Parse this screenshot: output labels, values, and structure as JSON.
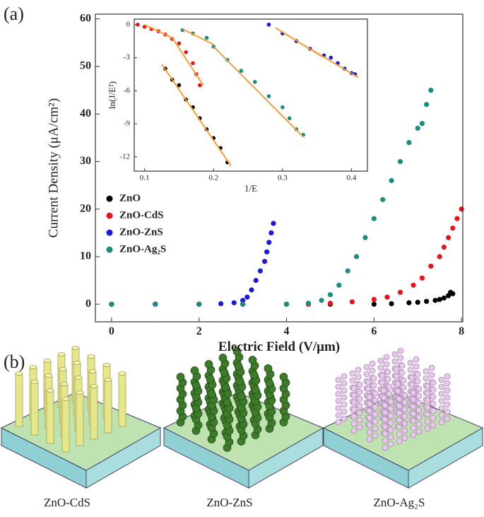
{
  "figure": {
    "panel_a": "(a)",
    "panel_b": "(b)",
    "illustrations": [
      "ZnO-CdS",
      "ZnO-ZnS",
      "ZnO-Ag₂S"
    ]
  },
  "chart_data": [
    {
      "type": "scatter",
      "x_label": "Electric Field (V/μm)",
      "y_label": "Current Density (μA/cm²)",
      "xlim": [
        -0.37,
        8.03
      ],
      "ylim": [
        -3.7,
        61
      ],
      "xticks": [
        0,
        2,
        4,
        6,
        8
      ],
      "yticks": [
        0,
        10,
        20,
        30,
        40,
        50,
        60
      ],
      "legend": "center-left",
      "series": [
        {
          "name": "ZnO",
          "color": "#000000",
          "x": [
            0,
            1,
            2,
            3,
            4,
            5,
            6,
            6.4,
            6.8,
            7.0,
            7.2,
            7.4,
            7.5,
            7.6,
            7.7,
            7.75,
            7.8
          ],
          "y": [
            0,
            0,
            0,
            0,
            0,
            0,
            0,
            0.1,
            0.3,
            0.4,
            0.6,
            0.8,
            1.0,
            1.3,
            1.8,
            2.5,
            2.2
          ]
        },
        {
          "name": "ZnO-CdS",
          "color": "#e8141a",
          "x": [
            0,
            1,
            2,
            3,
            4,
            4.5,
            5,
            5.5,
            6,
            6.3,
            6.6,
            6.9,
            7.1,
            7.3,
            7.5,
            7.6,
            7.7,
            7.8,
            7.9,
            8.0
          ],
          "y": [
            0,
            0,
            0,
            0,
            0,
            0,
            0.2,
            0.5,
            1,
            1.5,
            2.5,
            4,
            5.5,
            8,
            10,
            12,
            14,
            16,
            18,
            20
          ]
        },
        {
          "name": "ZnO-ZnS",
          "color": "#1a1adc",
          "x": [
            0,
            1,
            2,
            2.5,
            2.8,
            3.0,
            3.1,
            3.2,
            3.3,
            3.4,
            3.5,
            3.55,
            3.6,
            3.65,
            3.7
          ],
          "y": [
            0,
            0,
            0,
            0.1,
            0.3,
            0.8,
            1.5,
            3,
            5,
            7,
            9,
            11,
            13,
            15,
            17
          ]
        },
        {
          "name": "ZnO-Ag₂S",
          "color": "#1a8c80",
          "x": [
            0,
            1,
            2,
            3,
            4,
            4.5,
            4.8,
            5.0,
            5.2,
            5.4,
            5.6,
            5.8,
            6.0,
            6.2,
            6.4,
            6.6,
            6.8,
            7.0,
            7.1,
            7.2,
            7.3
          ],
          "y": [
            0,
            0,
            0,
            0,
            0,
            0.2,
            0.8,
            2,
            4,
            7,
            10,
            14,
            18,
            22,
            26,
            30,
            34,
            37,
            38,
            42,
            45
          ]
        }
      ]
    },
    {
      "type": "scatter",
      "x_label": "1/E",
      "y_label": "ln(J/E²)",
      "xlim": [
        0.085,
        0.423
      ],
      "ylim": [
        -13.3,
        0.5
      ],
      "xticks": [
        0.1,
        0.2,
        0.3,
        0.4
      ],
      "yticks": [
        0,
        -3,
        -6,
        -9,
        -12
      ],
      "fit_color": "#f5a030",
      "series": [
        {
          "color": "#000000",
          "x": [
            0.13,
            0.14,
            0.15,
            0.16,
            0.17,
            0.18,
            0.19,
            0.2,
            0.21,
            0.22
          ],
          "y": [
            -4,
            -5,
            -5.5,
            -6.8,
            -7.5,
            -8.5,
            -9.5,
            -10.3,
            -11.2,
            -12.5
          ]
        },
        {
          "color": "#e8141a",
          "x": [
            0.09,
            0.1,
            0.11,
            0.12,
            0.13,
            0.14,
            0.15,
            0.16,
            0.17,
            0.175,
            0.18
          ],
          "y": [
            0,
            -0.2,
            -0.4,
            -0.6,
            -0.9,
            -1.3,
            -1.7,
            -2.5,
            -3.5,
            -4.5,
            -5.5
          ]
        },
        {
          "color": "#1a8c80",
          "x": [
            0.155,
            0.17,
            0.19,
            0.2,
            0.22,
            0.24,
            0.26,
            0.28,
            0.3,
            0.31,
            0.32,
            0.33
          ],
          "y": [
            -0.5,
            -0.8,
            -1.2,
            -2,
            -3.2,
            -4.2,
            -5.2,
            -6.5,
            -7.5,
            -8.5,
            -9.5,
            -10
          ]
        },
        {
          "color": "#1a1adc",
          "x": [
            0.28,
            0.3,
            0.32,
            0.34,
            0.36,
            0.37,
            0.38,
            0.39,
            0.4,
            0.405
          ],
          "y": [
            0,
            -0.8,
            -1.5,
            -2.2,
            -2.8,
            -3,
            -3.5,
            -4,
            -4.4,
            -4.5
          ]
        }
      ],
      "fits": [
        {
          "x": [
            0.125,
            0.225
          ],
          "y": [
            -3.6,
            -12.8
          ]
        },
        {
          "x": [
            0.1,
            0.14
          ],
          "y": [
            0,
            -1.2
          ]
        },
        {
          "x": [
            0.14,
            0.185
          ],
          "y": [
            -1.2,
            -5.5
          ]
        },
        {
          "x": [
            0.155,
            0.2
          ],
          "y": [
            -0.4,
            -1.8
          ]
        },
        {
          "x": [
            0.2,
            0.33
          ],
          "y": [
            -2,
            -10.2
          ]
        },
        {
          "x": [
            0.29,
            0.36
          ],
          "y": [
            -0.3,
            -3.0
          ]
        },
        {
          "x": [
            0.34,
            0.41
          ],
          "y": [
            -2.2,
            -4.8
          ]
        }
      ]
    }
  ]
}
